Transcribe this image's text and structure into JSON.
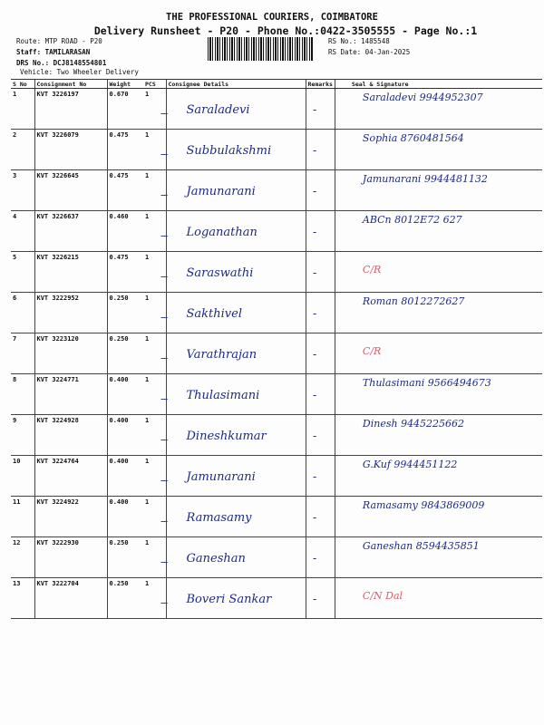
{
  "header": {
    "company": "THE PROFESSIONAL COURIERS, COIMBATORE",
    "subtitle": "Delivery Runsheet - P20 - Phone No.:0422-3505555 - Page No.:1",
    "route": "Route: MTP ROAD - P20",
    "staff": "Staff: TAMILARASAN",
    "drs": "DRS No.: DCJ8148554801",
    "vehicle": "Vehicle: Two Wheeler Delivery",
    "rs_no": "RS No.: 1485548",
    "rs_date": "RS Date: 04-Jan-2025"
  },
  "columns": [
    "S No",
    "Consignment No",
    "Weight",
    "PCS",
    "Consignee Details",
    "Remarks",
    "Seal & Signature"
  ],
  "rows": [
    {
      "sno": "1",
      "cn": "KVT 3226197",
      "weight": "0.670",
      "pcs": "1",
      "consignee": "Saraladevi",
      "signature": "Saraladevi 9944952307"
    },
    {
      "sno": "2",
      "cn": "KVT 3226079",
      "weight": "0.475",
      "pcs": "1",
      "consignee": "Subbulakshmi",
      "signature": "Sophia 8760481564"
    },
    {
      "sno": "3",
      "cn": "KVT 3226645",
      "weight": "0.475",
      "pcs": "1",
      "consignee": "Jamunarani",
      "signature": "Jamunarani 9944481132"
    },
    {
      "sno": "4",
      "cn": "KVT 3226637",
      "weight": "0.460",
      "pcs": "1",
      "consignee": "Loganathan",
      "signature": "ABCn 8012E72 627"
    },
    {
      "sno": "5",
      "cn": "KVT 3226215",
      "weight": "0.475",
      "pcs": "1",
      "consignee": "Saraswathi",
      "signature": "C/R"
    },
    {
      "sno": "6",
      "cn": "KVT 3222952",
      "weight": "0.250",
      "pcs": "1",
      "consignee": "Sakthivel",
      "signature": "Roman 8012272627"
    },
    {
      "sno": "7",
      "cn": "KVT 3223120",
      "weight": "0.250",
      "pcs": "1",
      "consignee": "Varathrajan",
      "signature": "C/R"
    },
    {
      "sno": "8",
      "cn": "KVT 3224771",
      "weight": "0.400",
      "pcs": "1",
      "consignee": "Thulasimani",
      "signature": "Thulasimani 9566494673"
    },
    {
      "sno": "9",
      "cn": "KVT 3224928",
      "weight": "0.400",
      "pcs": "1",
      "consignee": "Dineshkumar",
      "signature": "Dinesh 9445225662"
    },
    {
      "sno": "10",
      "cn": "KVT 3224764",
      "weight": "0.400",
      "pcs": "1",
      "consignee": "Jamunarani",
      "signature": "G.Kuf 9944451122"
    },
    {
      "sno": "11",
      "cn": "KVT 3224922",
      "weight": "0.400",
      "pcs": "1",
      "consignee": "Ramasamy",
      "signature": "Ramasamy 9843869009"
    },
    {
      "sno": "12",
      "cn": "KVT 3222930",
      "weight": "0.250",
      "pcs": "1",
      "consignee": "Ganeshan",
      "signature": "Ganeshan 8594435851"
    },
    {
      "sno": "13",
      "cn": "KVT 3222704",
      "weight": "0.250",
      "pcs": "1",
      "consignee": "Boveri Sankar",
      "signature": "C/N Dal"
    }
  ],
  "colors": {
    "ink": "#1c2a8c",
    "cr_ink": "#e05a6a"
  }
}
